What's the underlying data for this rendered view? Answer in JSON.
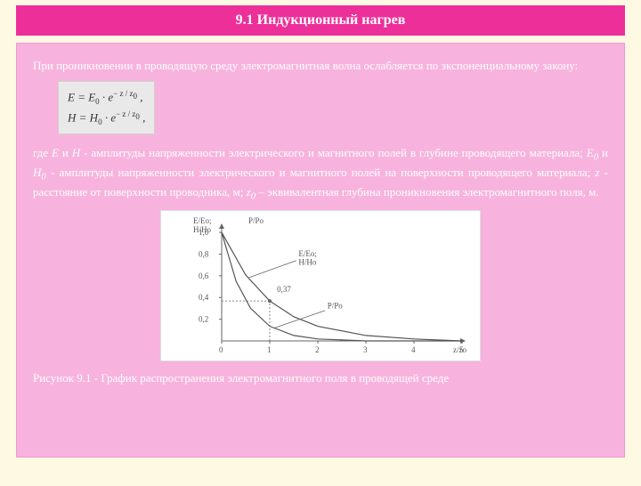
{
  "title": "9.1 Индукционный нагрев",
  "lead": "При проникновении в проводящую среду электромагнитная волна ослабляется по экспоненциальному закону:",
  "formula": {
    "line1_lhs": "E = E",
    "line1_sub1": "0",
    "line1_mid": " · e",
    "line1_sup": "− z / z",
    "line1_sup_sub": "0",
    "line1_trail": " ,",
    "line2_lhs": "H = H",
    "line2_sub1": "0",
    "line2_mid": " · e",
    "line2_sup": "− z / z",
    "line2_sup_sub": "0",
    "line2_trail": " ,"
  },
  "desc_parts": {
    "p1": "где ",
    "E": "E",
    "p2": " и ",
    "H": "H",
    "p3": " - амплитуды напряженности электрического и магнитного полей в глубине проводящего материала; ",
    "E0": "E",
    "E0s": "0",
    "p4": " и ",
    "H0": "H",
    "H0s": "0",
    "p5": " - амплитуды напряженности электрического и магнитного полей на поверхности проводящего материала; ",
    "z": "z",
    "p6": " - расстояние от поверхности проводника, м; ",
    "z0": "z",
    "z0s": "0",
    "p7": " – эквивалентная глубина проникновения электромагнитного поля, м."
  },
  "caption": "Рисунок 9.1 - График распространения электромагнитного поля в проводящей среде",
  "chart": {
    "type": "line",
    "background_color": "#ffffff",
    "axis_color": "#666666",
    "curve_color": "#555555",
    "font_size": 9,
    "x_ticks": [
      0,
      1,
      2,
      3,
      4,
      5
    ],
    "y_ticks": [
      0.2,
      0.4,
      0.6,
      0.8,
      1.0
    ],
    "y_axis_labels": [
      "E/Eo;",
      "H/Ho",
      "P/Po"
    ],
    "annotations": {
      "eh_curve": "E/Eo;\nH/Ho",
      "p_curve": "P/Po",
      "marker_val": "0,37",
      "x_label": "z/zo"
    },
    "xlim": [
      0,
      5
    ],
    "ylim": [
      0,
      1.05
    ],
    "curve_EH": [
      {
        "x": 0,
        "y": 1.0
      },
      {
        "x": 0.5,
        "y": 0.607
      },
      {
        "x": 1,
        "y": 0.368
      },
      {
        "x": 1.5,
        "y": 0.223
      },
      {
        "x": 2,
        "y": 0.135
      },
      {
        "x": 3,
        "y": 0.05
      },
      {
        "x": 4,
        "y": 0.018
      },
      {
        "x": 5,
        "y": 0.0
      }
    ],
    "curve_P": [
      {
        "x": 0,
        "y": 1.0
      },
      {
        "x": 0.3,
        "y": 0.549
      },
      {
        "x": 0.6,
        "y": 0.301
      },
      {
        "x": 1,
        "y": 0.135
      },
      {
        "x": 1.5,
        "y": 0.05
      },
      {
        "x": 2,
        "y": 0.018
      },
      {
        "x": 3,
        "y": 0.0
      },
      {
        "x": 4,
        "y": 0.0
      },
      {
        "x": 5,
        "y": 0.0
      }
    ]
  }
}
